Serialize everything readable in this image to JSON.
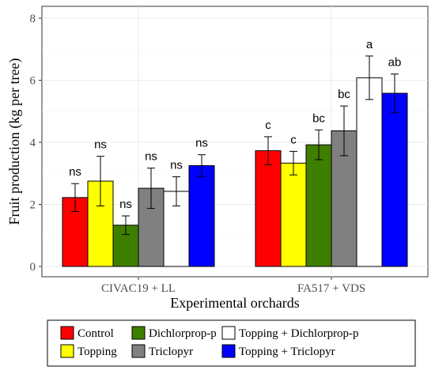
{
  "chart_data": {
    "type": "bar",
    "xlabel": "Experimental orchards",
    "ylabel": "Fruit production (kg per tree)",
    "ylim": [
      0,
      8
    ],
    "yticks": [
      0,
      2,
      4,
      6,
      8
    ],
    "grid": true,
    "legend_position": "bottom",
    "categories": [
      "CIVAC19 + LL",
      "FA517 + VDS"
    ],
    "series": [
      {
        "name": "Control",
        "color": "#ff0000",
        "values": [
          2.22,
          3.73
        ],
        "errors": [
          0.45,
          0.45
        ],
        "labels": [
          "ns",
          "c"
        ]
      },
      {
        "name": "Topping",
        "color": "#ffff00",
        "values": [
          2.75,
          3.33
        ],
        "errors": [
          0.8,
          0.38
        ],
        "labels": [
          "ns",
          "c"
        ]
      },
      {
        "name": "Dichlorprop-p",
        "color": "#3f7f00",
        "values": [
          1.33,
          3.92
        ],
        "errors": [
          0.3,
          0.48
        ],
        "labels": [
          "ns",
          "bc"
        ]
      },
      {
        "name": "Triclopyr",
        "color": "#808080",
        "values": [
          2.52,
          4.37
        ],
        "errors": [
          0.65,
          0.8
        ],
        "labels": [
          "ns",
          "bc"
        ]
      },
      {
        "name": "Topping + Dichlorprop-p",
        "color": "#ffffff",
        "values": [
          2.42,
          6.08
        ],
        "errors": [
          0.47,
          0.7
        ],
        "labels": [
          "ns",
          "a"
        ]
      },
      {
        "name": "Topping + Triclopyr",
        "color": "#0000ff",
        "values": [
          3.25,
          5.58
        ],
        "errors": [
          0.35,
          0.62
        ],
        "labels": [
          "ns",
          "ab"
        ]
      }
    ]
  }
}
